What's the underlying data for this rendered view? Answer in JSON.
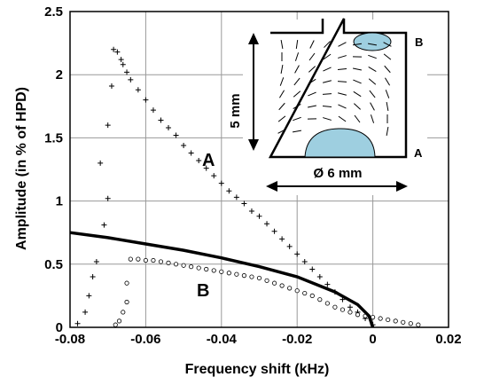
{
  "chart_data": {
    "type": "scatter",
    "xlabel": "Frequency shift (kHz)",
    "ylabel": "Amplitude (in % of HPD)",
    "xlim": [
      -0.08,
      0.02
    ],
    "ylim": [
      0,
      2.5
    ],
    "x_ticks": [
      "-0.08",
      "-0.06",
      "-0.04",
      "-0.02",
      "0",
      "0.02"
    ],
    "y_ticks": [
      "0",
      "0.5",
      "1",
      "1.5",
      "2",
      "2.5"
    ],
    "grid": true,
    "labels": {
      "A": "A",
      "B": "B"
    },
    "series": [
      {
        "marker": "plus",
        "points": [
          [
            -0.0685,
            2.2
          ],
          [
            -0.0675,
            2.18
          ],
          [
            -0.0665,
            2.12
          ],
          [
            -0.066,
            2.08
          ],
          [
            -0.065,
            2.02
          ],
          [
            -0.064,
            1.96
          ],
          [
            -0.062,
            1.88
          ],
          [
            -0.06,
            1.8
          ],
          [
            -0.058,
            1.72
          ],
          [
            -0.056,
            1.64
          ],
          [
            -0.054,
            1.58
          ],
          [
            -0.052,
            1.52
          ],
          [
            -0.05,
            1.44
          ],
          [
            -0.048,
            1.38
          ],
          [
            -0.046,
            1.32
          ],
          [
            -0.044,
            1.26
          ],
          [
            -0.042,
            1.2
          ],
          [
            -0.04,
            1.14
          ],
          [
            -0.038,
            1.08
          ],
          [
            -0.036,
            1.03
          ],
          [
            -0.034,
            0.98
          ],
          [
            -0.032,
            0.92
          ],
          [
            -0.03,
            0.88
          ],
          [
            -0.028,
            0.82
          ],
          [
            -0.026,
            0.76
          ],
          [
            -0.024,
            0.7
          ],
          [
            -0.022,
            0.64
          ],
          [
            -0.02,
            0.58
          ],
          [
            -0.018,
            0.52
          ],
          [
            -0.016,
            0.46
          ],
          [
            -0.014,
            0.4
          ],
          [
            -0.012,
            0.34
          ],
          [
            -0.01,
            0.28
          ],
          [
            -0.008,
            0.22
          ],
          [
            -0.006,
            0.16
          ],
          [
            -0.004,
            0.12
          ],
          [
            -0.002,
            0.07
          ],
          [
            0.0,
            0.02
          ],
          [
            -0.069,
            1.91
          ],
          [
            -0.07,
            1.6
          ],
          [
            -0.072,
            1.3
          ],
          [
            -0.07,
            1.02
          ],
          [
            -0.071,
            0.81
          ],
          [
            -0.073,
            0.52
          ],
          [
            -0.074,
            0.4
          ],
          [
            -0.075,
            0.25
          ],
          [
            -0.076,
            0.12
          ],
          [
            -0.078,
            0.03
          ]
        ]
      },
      {
        "marker": "circle",
        "points": [
          [
            -0.064,
            0.54
          ],
          [
            -0.062,
            0.54
          ],
          [
            -0.06,
            0.53
          ],
          [
            -0.058,
            0.53
          ],
          [
            -0.056,
            0.52
          ],
          [
            -0.054,
            0.51
          ],
          [
            -0.052,
            0.5
          ],
          [
            -0.05,
            0.49
          ],
          [
            -0.048,
            0.48
          ],
          [
            -0.046,
            0.47
          ],
          [
            -0.044,
            0.46
          ],
          [
            -0.042,
            0.45
          ],
          [
            -0.04,
            0.44
          ],
          [
            -0.038,
            0.43
          ],
          [
            -0.036,
            0.42
          ],
          [
            -0.034,
            0.41
          ],
          [
            -0.032,
            0.4
          ],
          [
            -0.03,
            0.39
          ],
          [
            -0.028,
            0.37
          ],
          [
            -0.026,
            0.35
          ],
          [
            -0.024,
            0.33
          ],
          [
            -0.022,
            0.31
          ],
          [
            -0.02,
            0.29
          ],
          [
            -0.018,
            0.27
          ],
          [
            -0.016,
            0.25
          ],
          [
            -0.014,
            0.22
          ],
          [
            -0.012,
            0.19
          ],
          [
            -0.01,
            0.16
          ],
          [
            -0.008,
            0.14
          ],
          [
            -0.006,
            0.12
          ],
          [
            -0.004,
            0.1
          ],
          [
            -0.002,
            0.09
          ],
          [
            0.0,
            0.08
          ],
          [
            0.002,
            0.07
          ],
          [
            0.004,
            0.06
          ],
          [
            0.006,
            0.05
          ],
          [
            0.008,
            0.04
          ],
          [
            0.01,
            0.03
          ],
          [
            0.012,
            0.02
          ],
          [
            -0.065,
            0.35
          ],
          [
            -0.065,
            0.2
          ],
          [
            -0.066,
            0.12
          ],
          [
            -0.067,
            0.05
          ],
          [
            -0.068,
            0.02
          ]
        ]
      },
      {
        "marker": "line",
        "points": [
          [
            -0.08,
            0.75
          ],
          [
            -0.07,
            0.71
          ],
          [
            -0.06,
            0.66
          ],
          [
            -0.05,
            0.61
          ],
          [
            -0.04,
            0.55
          ],
          [
            -0.03,
            0.48
          ],
          [
            -0.02,
            0.4
          ],
          [
            -0.01,
            0.28
          ],
          [
            -0.004,
            0.18
          ],
          [
            -0.001,
            0.09
          ],
          [
            0.0,
            0.0
          ]
        ]
      }
    ],
    "inset": {
      "dim_height": "5 mm",
      "dim_width": "Ø 6 mm",
      "label_top": "B",
      "label_bottom": "A"
    }
  }
}
